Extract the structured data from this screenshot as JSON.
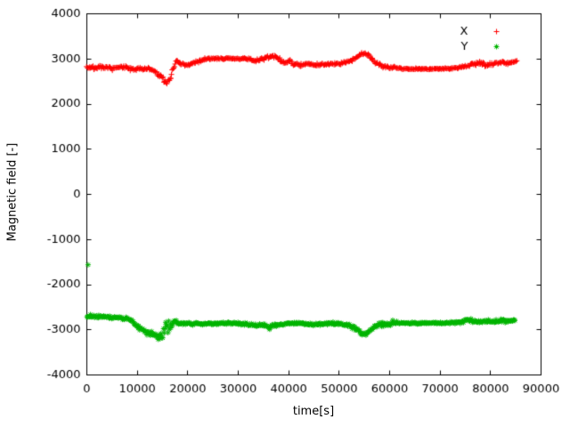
{
  "window": {
    "background": "#ffffff",
    "border_color": "#000000",
    "text_color": "#000000"
  },
  "chart_data": {
    "type": "scatter",
    "title": "",
    "xlabel": "time[s]",
    "ylabel": "Magnetic field [-]",
    "xlim": [
      0,
      90000
    ],
    "ylim": [
      -4000,
      4000
    ],
    "xticks": [
      0,
      10000,
      20000,
      30000,
      40000,
      50000,
      60000,
      70000,
      80000,
      90000
    ],
    "yticks": [
      -4000,
      -3000,
      -2000,
      -1000,
      0,
      1000,
      2000,
      3000,
      4000
    ],
    "grid": false,
    "legend_position": "top-right",
    "series": [
      {
        "name": "X",
        "marker": "plus",
        "color": "#ff0000",
        "keypoints": [
          [
            0,
            2820,
            60
          ],
          [
            1500,
            2800,
            55
          ],
          [
            3000,
            2810,
            55
          ],
          [
            4500,
            2790,
            55
          ],
          [
            6000,
            2800,
            55
          ],
          [
            7500,
            2810,
            55
          ],
          [
            9000,
            2770,
            65
          ],
          [
            10500,
            2800,
            55
          ],
          [
            12000,
            2780,
            60
          ],
          [
            13500,
            2730,
            70
          ],
          [
            14500,
            2620,
            90
          ],
          [
            15300,
            2510,
            90
          ],
          [
            15900,
            2470,
            80
          ],
          [
            16500,
            2560,
            90
          ],
          [
            17100,
            2780,
            70
          ],
          [
            17700,
            2930,
            55
          ],
          [
            18500,
            2900,
            50
          ],
          [
            19500,
            2850,
            45
          ],
          [
            20500,
            2880,
            45
          ],
          [
            21500,
            2930,
            45
          ],
          [
            22500,
            2960,
            40
          ],
          [
            23500,
            3000,
            30
          ],
          [
            25000,
            3010,
            25
          ],
          [
            27000,
            3010,
            25
          ],
          [
            29000,
            3005,
            25
          ],
          [
            31000,
            3000,
            28
          ],
          [
            32500,
            2990,
            40
          ],
          [
            33500,
            2950,
            55
          ],
          [
            34500,
            3000,
            60
          ],
          [
            35500,
            3020,
            65
          ],
          [
            36500,
            3040,
            70
          ],
          [
            37500,
            3050,
            75
          ],
          [
            38300,
            2980,
            60
          ],
          [
            39200,
            2900,
            55
          ],
          [
            40200,
            2950,
            70
          ],
          [
            41200,
            2890,
            55
          ],
          [
            42500,
            2870,
            45
          ],
          [
            44000,
            2900,
            45
          ],
          [
            45500,
            2860,
            50
          ],
          [
            47000,
            2880,
            45
          ],
          [
            48500,
            2890,
            40
          ],
          [
            50000,
            2900,
            40
          ],
          [
            51500,
            2930,
            45
          ],
          [
            53000,
            3000,
            50
          ],
          [
            54200,
            3090,
            50
          ],
          [
            55000,
            3130,
            45
          ],
          [
            55800,
            3080,
            55
          ],
          [
            56600,
            2980,
            55
          ],
          [
            57500,
            2900,
            55
          ],
          [
            58500,
            2850,
            60
          ],
          [
            59500,
            2830,
            55
          ],
          [
            60500,
            2810,
            45
          ],
          [
            62000,
            2790,
            30
          ],
          [
            64000,
            2780,
            25
          ],
          [
            66000,
            2780,
            22
          ],
          [
            68000,
            2780,
            22
          ],
          [
            70000,
            2780,
            22
          ],
          [
            72000,
            2785,
            25
          ],
          [
            73500,
            2800,
            35
          ],
          [
            75000,
            2840,
            45
          ],
          [
            76500,
            2880,
            55
          ],
          [
            77800,
            2900,
            60
          ],
          [
            79000,
            2860,
            55
          ],
          [
            80200,
            2880,
            55
          ],
          [
            81400,
            2920,
            65
          ],
          [
            82400,
            2950,
            70
          ],
          [
            83400,
            2900,
            55
          ],
          [
            84300,
            2930,
            50
          ],
          [
            85200,
            2960,
            40
          ]
        ],
        "outliers": []
      },
      {
        "name": "Y",
        "marker": "asterisk",
        "color": "#00b400",
        "keypoints": [
          [
            0,
            -2700,
            60
          ],
          [
            1500,
            -2710,
            55
          ],
          [
            3000,
            -2700,
            55
          ],
          [
            4500,
            -2720,
            55
          ],
          [
            6000,
            -2730,
            55
          ],
          [
            7500,
            -2740,
            60
          ],
          [
            8700,
            -2790,
            60
          ],
          [
            9700,
            -2880,
            70
          ],
          [
            10700,
            -2980,
            75
          ],
          [
            11700,
            -3050,
            80
          ],
          [
            12700,
            -3090,
            90
          ],
          [
            13700,
            -3130,
            100
          ],
          [
            14600,
            -3150,
            120
          ],
          [
            15300,
            -3050,
            250
          ],
          [
            15800,
            -2950,
            350
          ],
          [
            16400,
            -2950,
            330
          ],
          [
            16900,
            -2850,
            150
          ],
          [
            17500,
            -2830,
            70
          ],
          [
            18500,
            -2860,
            50
          ],
          [
            20000,
            -2850,
            45
          ],
          [
            22000,
            -2865,
            40
          ],
          [
            24000,
            -2870,
            38
          ],
          [
            26000,
            -2860,
            35
          ],
          [
            28000,
            -2850,
            35
          ],
          [
            30000,
            -2860,
            35
          ],
          [
            32000,
            -2880,
            45
          ],
          [
            33500,
            -2900,
            55
          ],
          [
            35000,
            -2880,
            50
          ],
          [
            36200,
            -2940,
            70
          ],
          [
            37400,
            -2910,
            55
          ],
          [
            38800,
            -2870,
            50
          ],
          [
            40200,
            -2860,
            45
          ],
          [
            42000,
            -2850,
            42
          ],
          [
            44000,
            -2880,
            42
          ],
          [
            46000,
            -2870,
            40
          ],
          [
            48000,
            -2860,
            40
          ],
          [
            50000,
            -2860,
            40
          ],
          [
            52000,
            -2900,
            45
          ],
          [
            53500,
            -2990,
            55
          ],
          [
            54500,
            -3080,
            55
          ],
          [
            55300,
            -3100,
            50
          ],
          [
            56200,
            -3010,
            55
          ],
          [
            57200,
            -2920,
            55
          ],
          [
            58200,
            -2870,
            75
          ],
          [
            59200,
            -2850,
            110
          ],
          [
            60200,
            -2860,
            95
          ],
          [
            61500,
            -2850,
            50
          ],
          [
            63000,
            -2850,
            32
          ],
          [
            65000,
            -2850,
            30
          ],
          [
            67000,
            -2850,
            30
          ],
          [
            69000,
            -2850,
            30
          ],
          [
            71000,
            -2850,
            30
          ],
          [
            73000,
            -2840,
            35
          ],
          [
            74500,
            -2820,
            50
          ],
          [
            75700,
            -2790,
            90
          ],
          [
            76900,
            -2810,
            60
          ],
          [
            78200,
            -2815,
            42
          ],
          [
            79600,
            -2805,
            40
          ],
          [
            81000,
            -2810,
            48
          ],
          [
            82300,
            -2805,
            50
          ],
          [
            83500,
            -2800,
            45
          ],
          [
            84800,
            -2795,
            40
          ]
        ],
        "outliers": [
          [
            250,
            -1560
          ]
        ]
      }
    ],
    "render": {
      "point_step": 150,
      "jitter_seed": 7,
      "marker_half_size": 3
    }
  }
}
